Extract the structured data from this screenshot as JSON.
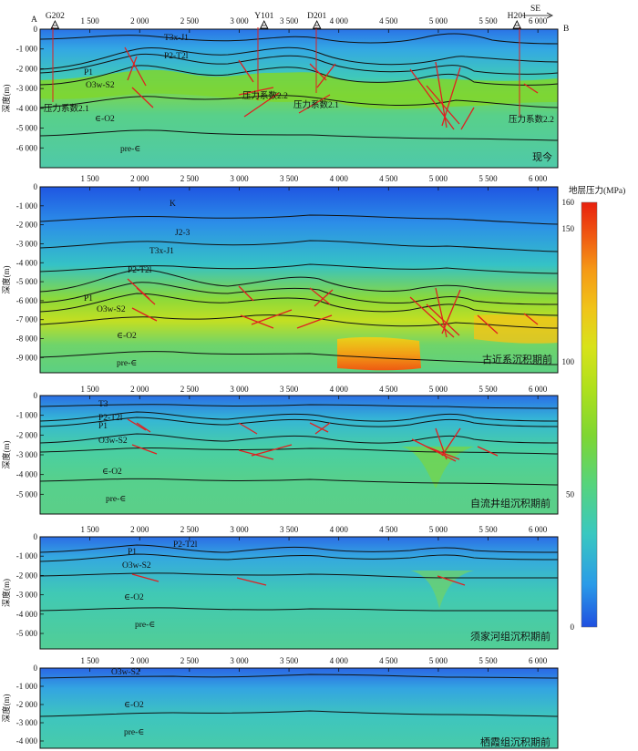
{
  "section": {
    "end_left": "A",
    "end_right": "B",
    "direction": "SE",
    "wells": [
      {
        "name": "G202",
        "x": 1150
      },
      {
        "name": "Y101",
        "x": 3250
      },
      {
        "name": "D201",
        "x": 3780
      },
      {
        "name": "H201",
        "x": 5790
      }
    ],
    "x_ticks": [
      "1 500",
      "2 000",
      "2 500",
      "3 000",
      "3 500",
      "4 000",
      "4 500",
      "5 000",
      "5 500",
      "6 000"
    ],
    "x_tick_values": [
      1500,
      2000,
      2500,
      3000,
      3500,
      4000,
      4500,
      5000,
      5500,
      6000
    ],
    "y_axis_label": "深度(m)"
  },
  "legend": {
    "title": "地层压力(MPa)",
    "min": 0,
    "max": 160,
    "ticks": [
      "0",
      "50",
      "100",
      "150",
      "160"
    ],
    "tick_values": [
      0,
      50,
      100,
      150,
      160
    ],
    "colors": [
      "#1f4fe0",
      "#2a9be8",
      "#39c8c0",
      "#57d47a",
      "#7ed632",
      "#aee01c",
      "#d8e21a",
      "#f0c419",
      "#f59a16",
      "#f05a12",
      "#e8200e"
    ]
  },
  "panels": [
    {
      "stage": "现今",
      "y_ticks": [
        "0",
        "-1 000",
        "-2 000",
        "-3 000",
        "-4 000",
        "-5 000",
        "-6 000"
      ],
      "y_tick_values": [
        0,
        -1000,
        -2000,
        -3000,
        -4000,
        -5000,
        -6000
      ],
      "strata_labels": [
        "T3x-J1",
        "P2-T2l",
        "P1",
        "O3w-S2",
        "∈-O2",
        "pre-∈"
      ],
      "pressure_labels": [
        "压力系数2.1",
        "压力系数2.2",
        "压力系数2.1",
        "压力系数2.2"
      ]
    },
    {
      "stage": "古近系沉积期前",
      "y_ticks": [
        "0",
        "-1 000",
        "-2 000",
        "-3 000",
        "-4 000",
        "-5 000",
        "-6 000",
        "-7 000",
        "-8 000",
        "-9 000"
      ],
      "y_tick_values": [
        0,
        -1000,
        -2000,
        -3000,
        -4000,
        -5000,
        -6000,
        -7000,
        -8000,
        -9000
      ],
      "strata_labels": [
        "K",
        "J2-3",
        "T3x-J1",
        "P2-T2l",
        "P1",
        "O3w-S2",
        "∈-O2",
        "pre-∈"
      ]
    },
    {
      "stage": "自流井组沉积期前",
      "y_ticks": [
        "0",
        "-1 000",
        "-2 000",
        "-3 000",
        "-4 000",
        "-5 000"
      ],
      "y_tick_values": [
        0,
        -1000,
        -2000,
        -3000,
        -4000,
        -5000
      ],
      "strata_labels": [
        "T3",
        "P2-T2l",
        "P1",
        "O3w-S2",
        "∈-O2",
        "pre-∈"
      ]
    },
    {
      "stage": "须家河组沉积期前",
      "y_ticks": [
        "0",
        "-1 000",
        "-2 000",
        "-3 000",
        "-4 000",
        "-5 000"
      ],
      "y_tick_values": [
        0,
        -1000,
        -2000,
        -3000,
        -4000,
        -5000
      ],
      "strata_labels": [
        "P1",
        "P2-T2l",
        "O3w-S2",
        "∈-O2",
        "pre-∈"
      ]
    },
    {
      "stage": "栖霞组沉积期前",
      "y_ticks": [
        "0",
        "-1 000",
        "-2 000",
        "-3 000",
        "-4 000"
      ],
      "y_tick_values": [
        0,
        -1000,
        -2000,
        -3000,
        -4000
      ],
      "strata_labels": [
        "O3w-S2",
        "∈-O2",
        "pre-∈"
      ]
    }
  ]
}
